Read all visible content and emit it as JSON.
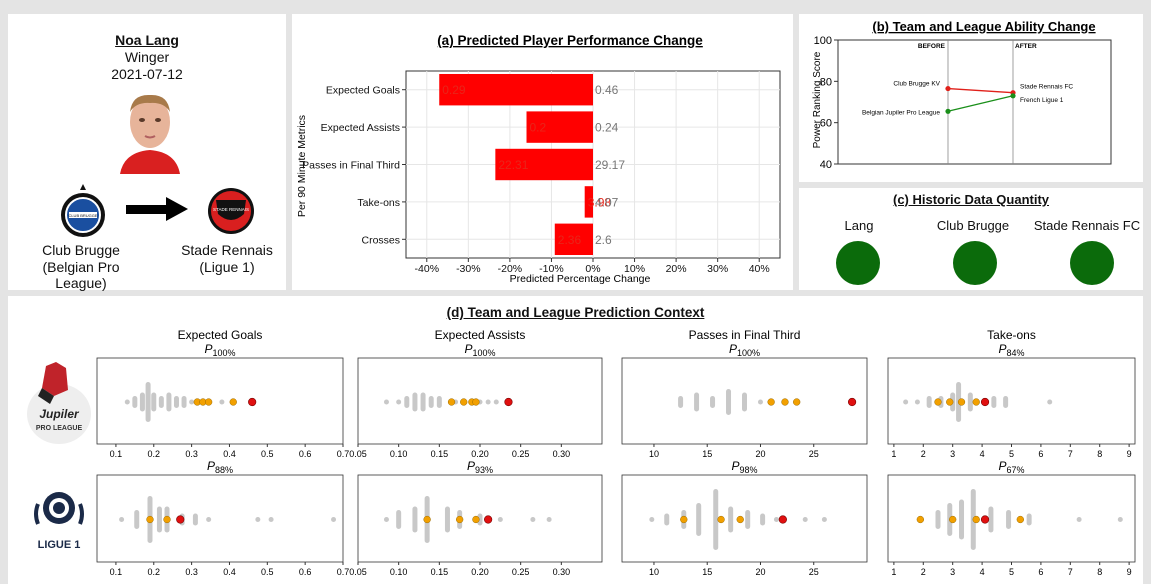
{
  "player": {
    "name": "Noa Lang",
    "position": "Winger",
    "date": "2021-07-12",
    "from_club": "Club Brugge",
    "from_league": "(Belgian Pro League)",
    "to_club": "Stade Rennais",
    "to_league": "(Ligue 1)",
    "from_badge_text": "CLUB BRUGGE",
    "to_badge_text": "STADE RENNAIS"
  },
  "panel_b_labels": {
    "before": "BEFORE",
    "after": "AFTER"
  },
  "panel_c": {
    "title": "(c) Historic Data Quantity",
    "items": [
      {
        "label": "Lang",
        "color": "#0b6b0b"
      },
      {
        "label": "Club Brugge",
        "color": "#0b6b0b"
      },
      {
        "label": "Stade Rennais FC",
        "color": "#0b6b0b"
      }
    ]
  },
  "panel_d": {
    "title": "(d) Team and League Prediction Context",
    "logos": {
      "jupiler_top": "Jupiler",
      "jupiler_bottom": "PRO LEAGUE",
      "ligue1": "LIGUE 1"
    }
  },
  "colors": {
    "bar": "#ff0000",
    "label_red": "#e8251a",
    "label_grey": "#777777",
    "green": "#1a8f1a",
    "red": "#e0201a",
    "orange": "#f2a000",
    "dot_red": "#e01010",
    "grey_dot": "#c8c8c8"
  },
  "chart_data": [
    {
      "type": "bar",
      "title": "(a) Predicted Player Performance Change",
      "xlabel": "Predicted Percentage Change",
      "ylabel": "Per 90 Minute Metrics",
      "categories": [
        "Expected Goals",
        "Expected Assists",
        "Passes in Final Third",
        "Take-ons",
        "Crosses"
      ],
      "values": [
        -37,
        -16,
        -23.5,
        -2,
        -9.2
      ],
      "new_values": [
        "0.29",
        "0.2",
        "22.31",
        "3.98",
        "2.36"
      ],
      "old_values": [
        "0.46",
        "0.24",
        "29.17",
        "4.07",
        "2.6"
      ],
      "xlim": [
        -45,
        45
      ],
      "xticks": [
        -40,
        -30,
        -20,
        -10,
        0,
        10,
        20,
        30,
        40
      ],
      "xtick_labels": [
        "-40%",
        "-30%",
        "-20%",
        "-10%",
        "0%",
        "10%",
        "20%",
        "30%",
        "40%"
      ],
      "grid": true
    },
    {
      "type": "line",
      "title": "(b) Team and League Ability Change",
      "ylabel": "Power Ranking Score",
      "ylim": [
        40,
        100
      ],
      "yticks": [
        40,
        60,
        80,
        100
      ],
      "series": [
        {
          "name": "Club",
          "color": "#e0201a",
          "values": [
            76.5,
            74.5
          ],
          "start_label": "Club Brugge KV",
          "end_label": "Stade Rennais FC"
        },
        {
          "name": "League",
          "color": "#1a8f1a",
          "values": [
            65.5,
            73
          ],
          "start_label": "Belgian Jupiler Pro League",
          "end_label": "French Ligue 1"
        }
      ]
    },
    {
      "type": "scatter",
      "title": "(d) Team and League Prediction Context",
      "columns": [
        {
          "metric": "Expected Goals",
          "xlim": [
            0.05,
            0.7
          ],
          "xticks": [
            0.1,
            0.2,
            0.3,
            0.4,
            0.5,
            0.6,
            0.7
          ],
          "xtick_labels": [
            "0.1",
            "0.2",
            "0.3",
            "0.4",
            "0.5",
            "0.6",
            "0.7"
          ]
        },
        {
          "metric": "Expected Assists",
          "xlim": [
            0.05,
            0.35
          ],
          "xticks": [
            0.05,
            0.1,
            0.15,
            0.2,
            0.25,
            0.3
          ],
          "xtick_labels": [
            "0.05",
            "0.10",
            "0.15",
            "0.20",
            "0.25",
            "0.30"
          ]
        },
        {
          "metric": "Passes in Final Third",
          "xlim": [
            7,
            30
          ],
          "xticks": [
            10,
            15,
            20,
            25
          ],
          "xtick_labels": [
            "10",
            "15",
            "20",
            "25"
          ]
        },
        {
          "metric": "Take-ons",
          "xlim": [
            0.8,
            9.2
          ],
          "xticks": [
            1,
            2,
            3,
            4,
            5,
            6,
            7,
            8,
            9
          ],
          "xtick_labels": [
            "1",
            "2",
            "3",
            "4",
            "5",
            "6",
            "7",
            "8",
            "9"
          ]
        }
      ],
      "rows": [
        {
          "league": "Jupiler Pro League",
          "percentiles": [
            "100%",
            "100%",
            "100%",
            "84%"
          ],
          "player": [
            0.46,
            0.235,
            28.6,
            4.1
          ],
          "team": [
            [
              0.315,
              0.33,
              0.345,
              0.41
            ],
            [
              0.165,
              0.18,
              0.19,
              0.195
            ],
            [
              21.0,
              22.3,
              23.4
            ],
            [
              2.5,
              2.9,
              3.3,
              3.8
            ]
          ],
          "grey": [
            [
              0.13,
              0.15,
              0.17,
              0.185,
              0.2,
              0.22,
              0.24,
              0.26,
              0.28,
              0.3,
              0.38
            ],
            [
              0.085,
              0.1,
              0.11,
              0.12,
              0.13,
              0.14,
              0.15,
              0.17,
              0.2,
              0.21,
              0.22
            ],
            [
              12.5,
              14,
              15.5,
              17,
              18.5,
              20
            ],
            [
              1.4,
              1.8,
              2.2,
              2.6,
              3.0,
              3.2,
              3.6,
              4.4,
              4.8,
              6.3
            ]
          ],
          "grey_sizes": [
            [
              1,
              2,
              3,
              6,
              3,
              2,
              3,
              2,
              2,
              1,
              1
            ],
            [
              1,
              1,
              2,
              3,
              3,
              2,
              2,
              1,
              1,
              1,
              1
            ],
            [
              2,
              3,
              2,
              4,
              3,
              1
            ],
            [
              1,
              1,
              2,
              2,
              3,
              6,
              3,
              2,
              2,
              1
            ]
          ]
        },
        {
          "league": "Ligue 1",
          "percentiles": [
            "88%",
            "93%",
            "98%",
            "67%"
          ],
          "player": [
            0.27,
            0.21,
            22.1,
            4.1
          ],
          "team": [
            [
              0.19,
              0.235
            ],
            [
              0.135,
              0.175,
              0.195
            ],
            [
              12.8,
              16.3,
              18.1
            ],
            [
              1.9,
              3.0,
              3.8,
              5.3
            ]
          ],
          "grey": [
            [
              0.115,
              0.155,
              0.19,
              0.215,
              0.235,
              0.275,
              0.31,
              0.345,
              0.475,
              0.51,
              0.675
            ],
            [
              0.085,
              0.1,
              0.12,
              0.135,
              0.16,
              0.175,
              0.2,
              0.225,
              0.265,
              0.285
            ],
            [
              9.8,
              11.2,
              12.8,
              14.2,
              15.8,
              17.2,
              18.8,
              20.2,
              21.5,
              24.2,
              26.0
            ],
            [
              1.9,
              2.5,
              2.9,
              3.3,
              3.7,
              4.3,
              4.9,
              5.6,
              7.3,
              8.7
            ]
          ],
          "grey_sizes": [
            [
              1,
              3,
              7,
              4,
              4,
              2,
              2,
              1,
              1,
              1,
              1
            ],
            [
              1,
              3,
              4,
              7,
              4,
              3,
              2,
              1,
              1,
              1
            ],
            [
              1,
              2,
              3,
              5,
              9,
              4,
              3,
              2,
              1,
              1,
              1
            ],
            [
              1,
              3,
              5,
              6,
              9,
              4,
              3,
              2,
              1,
              1
            ]
          ]
        }
      ]
    }
  ]
}
